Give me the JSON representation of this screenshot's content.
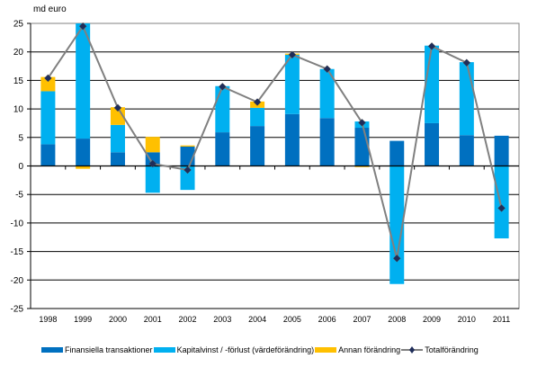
{
  "chart_data": {
    "type": "bar",
    "stacked": true,
    "ylabel": "md euro",
    "ylim": [
      -25,
      25
    ],
    "yticks": [
      -25,
      -20,
      -15,
      -10,
      -5,
      0,
      5,
      10,
      15,
      20,
      25
    ],
    "grid": true,
    "legend_position": "bottom",
    "categories": [
      "1998",
      "1999",
      "2000",
      "2001",
      "2002",
      "2003",
      "2004",
      "2005",
      "2006",
      "2007",
      "2008",
      "2009",
      "2010",
      "2011"
    ],
    "series": [
      {
        "name": "Finansiella transaktioner",
        "color": "#0070C0",
        "values": [
          3.8,
          4.8,
          2.4,
          2.4,
          3.4,
          5.9,
          7.0,
          9.1,
          8.4,
          6.7,
          4.4,
          7.5,
          5.4,
          5.3
        ]
      },
      {
        "name": "Kapitalvinst / -förlust (värdeförändring)",
        "color": "#00B0F0",
        "values": [
          9.3,
          20.2,
          4.8,
          -4.7,
          -4.2,
          8.1,
          3.2,
          10.4,
          8.6,
          1.1,
          -20.7,
          13.6,
          12.8,
          -12.7
        ]
      },
      {
        "name": "Annan förändring",
        "color": "#FFC000",
        "values": [
          2.5,
          -0.5,
          3.1,
          2.7,
          0.2,
          0,
          1.1,
          0.2,
          0,
          -0.2,
          0,
          0,
          0,
          0
        ]
      }
    ],
    "line": {
      "name": "Totalförändring",
      "color": "#808080",
      "marker_color": "#1F2D5A",
      "values": [
        15.4,
        24.5,
        10.2,
        0.4,
        -0.7,
        13.9,
        11.2,
        19.5,
        17.0,
        7.6,
        -16.2,
        21.0,
        18.1,
        -7.4
      ]
    }
  }
}
